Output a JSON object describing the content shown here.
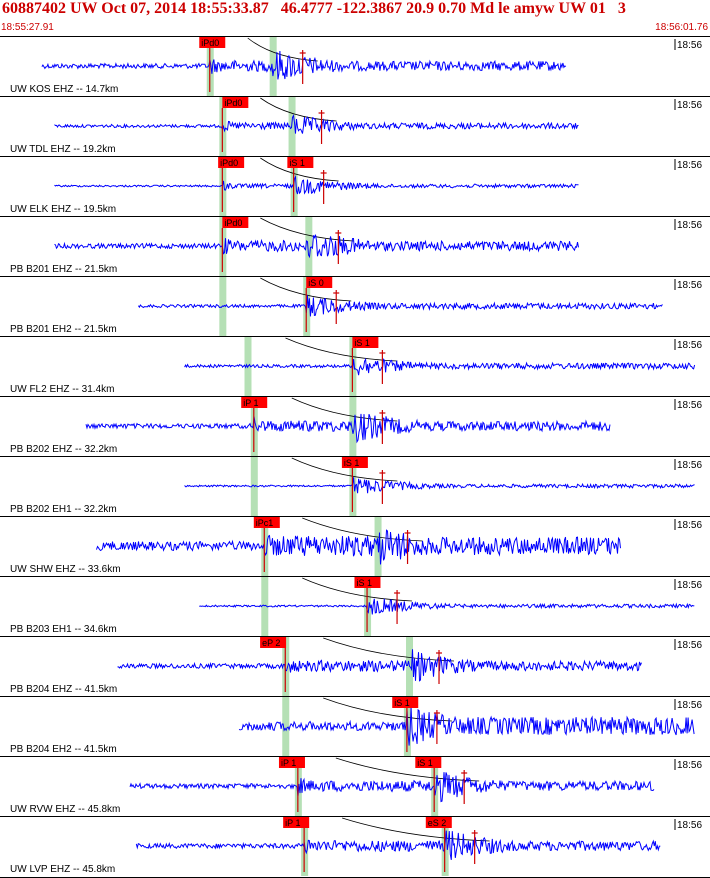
{
  "header": {
    "title": "60887402 UW Oct 07, 2014 18:55:33.87   46.4777 -122.3867 20.9 0.70 Md le amyw UW 01   3",
    "start_time": "18:55:27.91",
    "end_time": "18:56:01.76"
  },
  "colors": {
    "background": "#ffffff",
    "trace": "#0000ff",
    "pick_label_bg": "#ff0000",
    "pick_line": "#cc0000",
    "pick_window": "#b5e0b5",
    "header_text": "#cc0000",
    "separator": "#000000"
  },
  "time_window": {
    "start_s": 0,
    "end_s": 33.85
  },
  "traces": [
    {
      "id": "t1",
      "label": "UW KOS EHZ -- 14.7km",
      "time_tick": "18:56",
      "amp": "med",
      "arrival_s": 10.0,
      "onset_s": 13.0,
      "p_window_s": 10.0,
      "s_window_s": 13.0,
      "picks": [
        {
          "text": "iPd0",
          "time_s": 9.5
        }
      ]
    },
    {
      "id": "t2",
      "label": "UW TDL EHZ -- 19.2km",
      "time_tick": "18:56",
      "amp": "low",
      "arrival_s": 10.6,
      "onset_s": 13.9,
      "p_window_s": 10.6,
      "s_window_s": 13.9,
      "picks": [
        {
          "text": "iPd0",
          "time_s": 10.6
        }
      ]
    },
    {
      "id": "t3",
      "label": "UW ELK EHZ -- 19.5km",
      "time_tick": "18:56",
      "amp": "tiny",
      "arrival_s": 10.6,
      "onset_s": 14.0,
      "p_window_s": 10.6,
      "s_window_s": 14.0,
      "picks": [
        {
          "text": "iPd0",
          "time_s": 10.4
        },
        {
          "text": "iS 1",
          "time_s": 13.7
        }
      ]
    },
    {
      "id": "t4",
      "label": "PB B201 EHZ -- 21.5km",
      "time_tick": "18:56",
      "amp": "med",
      "arrival_s": 10.6,
      "onset_s": 14.7,
      "p_window_s": 10.6,
      "s_window_s": 14.7,
      "picks": [
        {
          "text": "iPd0",
          "time_s": 10.6
        }
      ]
    },
    {
      "id": "t5",
      "label": "PB B201 EH2 -- 21.5km",
      "time_tick": "18:56",
      "amp": "low",
      "arrival_s": 14.6,
      "onset_s": 14.6,
      "p_window_s": 10.6,
      "s_window_s": 14.6,
      "picks": [
        {
          "text": "iS 0",
          "time_s": 14.6
        }
      ]
    },
    {
      "id": "t6",
      "label": "UW FL2 EHZ -- 31.4km",
      "time_tick": "18:56",
      "amp": "low",
      "arrival_s": 16.8,
      "onset_s": 16.8,
      "p_window_s": 11.8,
      "s_window_s": 16.8,
      "picks": [
        {
          "text": "iS 1",
          "time_s": 16.8
        }
      ]
    },
    {
      "id": "t7",
      "label": "PB B202 EHZ -- 32.2km",
      "time_tick": "18:56",
      "amp": "med",
      "arrival_s": 12.1,
      "onset_s": 16.8,
      "p_window_s": 12.1,
      "s_window_s": 16.8,
      "picks": [
        {
          "text": "iP 1",
          "time_s": 11.5
        }
      ]
    },
    {
      "id": "t8",
      "label": "PB B202 EH1 -- 32.2km",
      "time_tick": "18:56",
      "amp": "tiny",
      "arrival_s": 16.8,
      "onset_s": 16.8,
      "p_window_s": 12.1,
      "s_window_s": 16.8,
      "picks": [
        {
          "text": "iS 1",
          "time_s": 16.3
        }
      ]
    },
    {
      "id": "t9",
      "label": "UW SHW EHZ -- 33.6km",
      "time_tick": "18:56",
      "amp": "high",
      "arrival_s": 12.6,
      "onset_s": 18.0,
      "p_window_s": 12.6,
      "s_window_s": 18.0,
      "picks": [
        {
          "text": "iPc1",
          "time_s": 12.1
        }
      ]
    },
    {
      "id": "t10",
      "label": "PB B203 EH1 -- 34.6km",
      "time_tick": "18:56",
      "amp": "tiny",
      "arrival_s": 17.5,
      "onset_s": 17.5,
      "p_window_s": 12.6,
      "s_window_s": 17.5,
      "picks": [
        {
          "text": "iS 1",
          "time_s": 16.9
        }
      ]
    },
    {
      "id": "t11",
      "label": "PB B204 EHZ -- 41.5km",
      "time_tick": "18:56",
      "amp": "med",
      "arrival_s": 13.6,
      "onset_s": 19.5,
      "p_window_s": 13.6,
      "s_window_s": 19.5,
      "picks": [
        {
          "text": "eP 2",
          "time_s": 12.4
        }
      ]
    },
    {
      "id": "t12",
      "label": "PB B204 EH2 -- 41.5km",
      "time_tick": "18:56",
      "amp": "high",
      "arrival_s": 19.4,
      "onset_s": 19.4,
      "p_window_s": 13.6,
      "s_window_s": 19.4,
      "picks": [
        {
          "text": "iS 1",
          "time_s": 18.7
        }
      ]
    },
    {
      "id": "t13",
      "label": "UW RVW EHZ -- 45.8km",
      "time_tick": "18:56",
      "amp": "med",
      "arrival_s": 14.2,
      "onset_s": 20.7,
      "p_window_s": 14.2,
      "s_window_s": 20.7,
      "picks": [
        {
          "text": "iP 1",
          "time_s": 13.3
        },
        {
          "text": "iS 1",
          "time_s": 19.8
        }
      ]
    },
    {
      "id": "t14",
      "label": "UW LVP EHZ -- 45.8km",
      "time_tick": "18:56",
      "amp": "med",
      "arrival_s": 14.5,
      "onset_s": 21.2,
      "p_window_s": 14.5,
      "s_window_s": 21.2,
      "picks": [
        {
          "text": "iP 1",
          "time_s": 13.5
        },
        {
          "text": "eS 2",
          "time_s": 20.3
        }
      ]
    }
  ]
}
